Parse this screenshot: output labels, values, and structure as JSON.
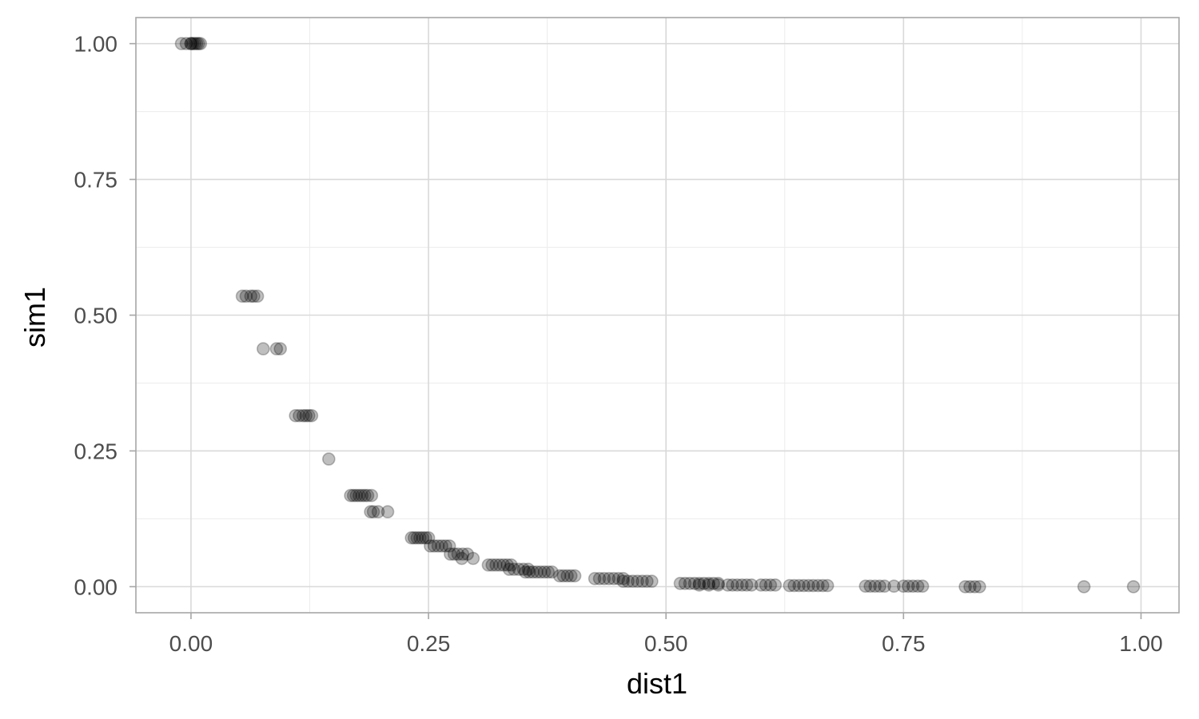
{
  "chart_data": {
    "type": "scatter",
    "title": "",
    "xlabel": "dist1",
    "ylabel": "sim1",
    "xlim": [
      -0.058,
      1.04
    ],
    "ylim": [
      -0.048,
      1.048
    ],
    "x_ticks": [
      0.0,
      0.25,
      0.5,
      0.75,
      1.0
    ],
    "x_tick_labels": [
      "0.00",
      "0.25",
      "0.50",
      "0.75",
      "1.00"
    ],
    "x_minor": [
      0.125,
      0.375,
      0.625,
      0.875
    ],
    "y_ticks": [
      0.0,
      0.25,
      0.5,
      0.75,
      1.0
    ],
    "y_tick_labels": [
      "0.00",
      "0.25",
      "0.50",
      "0.75",
      "1.00"
    ],
    "y_minor": [
      0.125,
      0.375,
      0.625,
      0.875
    ],
    "grid": true,
    "legend": "none",
    "point_color": "#000000",
    "point_alpha": 0.25,
    "groups": [
      {
        "y": 1.0,
        "x": [
          -0.01,
          -0.005,
          0.0,
          0.0,
          0.002,
          0.004,
          0.006,
          0.008,
          0.01
        ]
      },
      {
        "y": 0.535,
        "x": [
          0.054,
          0.058,
          0.063,
          0.066,
          0.07
        ]
      },
      {
        "y": 0.438,
        "x": [
          0.076,
          0.09,
          0.094
        ]
      },
      {
        "y": 0.315,
        "x": [
          0.11,
          0.114,
          0.118,
          0.121,
          0.124,
          0.127
        ]
      },
      {
        "y": 0.235,
        "x": [
          0.145
        ]
      },
      {
        "y": 0.168,
        "x": [
          0.168,
          0.171,
          0.174,
          0.177,
          0.18,
          0.183,
          0.186,
          0.19
        ]
      },
      {
        "y": 0.138,
        "x": [
          0.189,
          0.192,
          0.197,
          0.207
        ]
      },
      {
        "y": 0.09,
        "x": [
          0.232,
          0.235,
          0.238,
          0.241,
          0.244,
          0.247,
          0.25
        ]
      },
      {
        "y": 0.075,
        "x": [
          0.252,
          0.256,
          0.26,
          0.264,
          0.268,
          0.272
        ]
      },
      {
        "y": 0.06,
        "x": [
          0.273,
          0.277,
          0.281,
          0.286,
          0.291
        ]
      },
      {
        "y": 0.052,
        "x": [
          0.285,
          0.297
        ]
      },
      {
        "y": 0.04,
        "x": [
          0.313,
          0.317,
          0.321,
          0.325,
          0.329,
          0.333,
          0.337
        ]
      },
      {
        "y": 0.032,
        "x": [
          0.335,
          0.34,
          0.345,
          0.35,
          0.355
        ]
      },
      {
        "y": 0.027,
        "x": [
          0.352,
          0.356,
          0.36,
          0.364,
          0.368,
          0.372,
          0.376,
          0.38
        ]
      },
      {
        "y": 0.02,
        "x": [
          0.388,
          0.392,
          0.396,
          0.4,
          0.404
        ]
      },
      {
        "y": 0.015,
        "x": [
          0.425,
          0.43,
          0.435,
          0.44,
          0.445,
          0.45,
          0.455
        ]
      },
      {
        "y": 0.01,
        "x": [
          0.455,
          0.46,
          0.465,
          0.47,
          0.475,
          0.48,
          0.485
        ]
      },
      {
        "y": 0.006,
        "x": [
          0.515,
          0.52,
          0.525,
          0.53,
          0.535,
          0.54,
          0.545,
          0.55,
          0.555
        ]
      },
      {
        "y": 0.003,
        "x": [
          0.535,
          0.545,
          0.555,
          0.565,
          0.57,
          0.575,
          0.58,
          0.585,
          0.59,
          0.6,
          0.605,
          0.61,
          0.615
        ]
      },
      {
        "y": 0.002,
        "x": [
          0.63,
          0.635,
          0.64,
          0.645,
          0.65,
          0.655,
          0.66,
          0.665,
          0.67
        ]
      },
      {
        "y": 0.001,
        "x": [
          0.71,
          0.715,
          0.72,
          0.725,
          0.73,
          0.74
        ]
      },
      {
        "y": 0.001,
        "x": [
          0.75,
          0.755,
          0.76,
          0.765,
          0.77
        ]
      },
      {
        "y": 0.0,
        "x": [
          0.815,
          0.82,
          0.825,
          0.83
        ]
      },
      {
        "y": 0.0,
        "x": [
          0.94,
          0.992
        ]
      }
    ]
  }
}
